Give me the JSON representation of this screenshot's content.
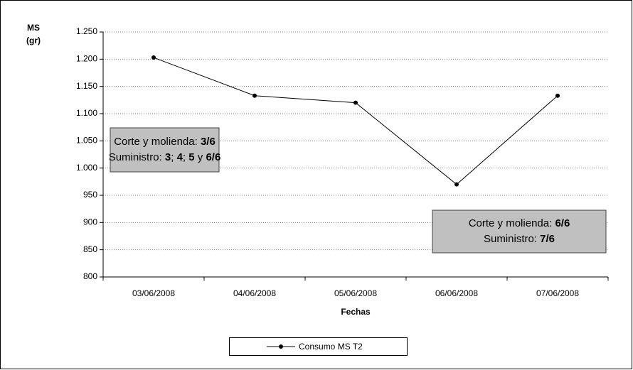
{
  "chart_data": {
    "type": "line",
    "y_label_lines": [
      "MS",
      "(gr)"
    ],
    "x_label": "Fechas",
    "categories": [
      "03/06/2008",
      "04/06/2008",
      "05/06/2008",
      "06/06/2008",
      "07/06/2008"
    ],
    "series": [
      {
        "name": "Consumo MS T2",
        "color": "#000000",
        "values": [
          1203,
          1133,
          1120,
          970,
          1133
        ]
      }
    ],
    "ylim": [
      800,
      1250
    ],
    "yticks": [
      800,
      850,
      900,
      950,
      {
        "value": 1000,
        "label": "1.000"
      },
      {
        "value": 1050,
        "label": "1.050"
      },
      {
        "value": 1100,
        "label": "1.100"
      },
      {
        "value": 1150,
        "label": "1.150"
      },
      {
        "value": 1200,
        "label": "1.200"
      },
      {
        "value": 1250,
        "label": "1.250"
      }
    ],
    "grid": true,
    "legend": "bottom",
    "annotations": [
      {
        "lines": [
          [
            "Corte y molienda: ",
            "3/6"
          ],
          [
            "Suministro: ",
            "3",
            "; ",
            "4",
            "; ",
            "5",
            " y ",
            "6/6"
          ]
        ]
      },
      {
        "lines": [
          [
            "Corte y molienda: ",
            "6/6"
          ],
          [
            "Suministro: ",
            "7/6"
          ]
        ]
      }
    ]
  }
}
